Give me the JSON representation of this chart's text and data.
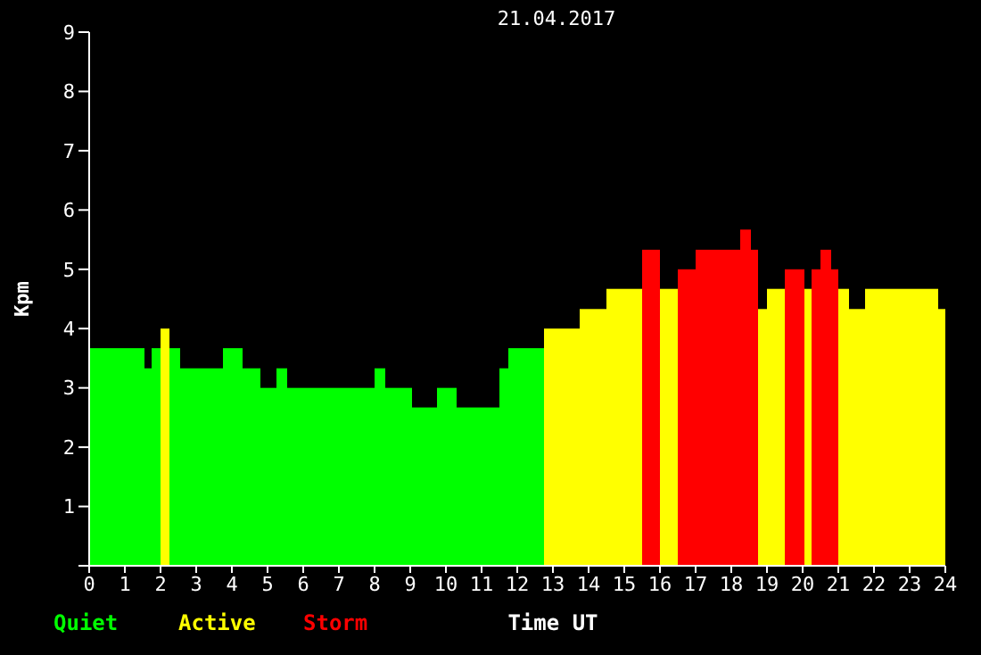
{
  "chart_data": {
    "type": "histogram",
    "title": "21.04.2017",
    "xlabel": "Time UT",
    "ylabel": "Kpm",
    "bins": [
      0,
      1.55,
      1.75,
      2.0,
      2.25,
      2.55,
      3.75,
      4.3,
      4.8,
      5.25,
      5.55,
      8.0,
      8.3,
      9.05,
      9.75,
      10.3,
      11.5,
      11.75,
      12.75,
      13.75,
      14.5,
      15.5,
      16.0,
      16.5,
      17.0,
      18.25,
      18.55,
      18.75,
      19.0,
      19.5,
      20.05,
      20.25,
      20.5,
      20.8,
      21.0,
      21.3,
      21.75,
      23.8,
      24.0
    ],
    "series": [
      {
        "name": "Quiet",
        "color": "#00ff00",
        "values": [
          3.67,
          3.33,
          3.67,
          null,
          3.67,
          3.33,
          3.67,
          3.33,
          3,
          3.33,
          3,
          3.33,
          3,
          2.67,
          3,
          2.67,
          3.33,
          3.67,
          null,
          null,
          null,
          null,
          null,
          null,
          null,
          null,
          null,
          null,
          null,
          null,
          null,
          null,
          null,
          null,
          null,
          null,
          null,
          null
        ]
      },
      {
        "name": "Active",
        "color": "#ffff00",
        "values": [
          null,
          null,
          null,
          4,
          null,
          null,
          null,
          null,
          null,
          null,
          null,
          null,
          null,
          null,
          null,
          null,
          null,
          null,
          4,
          4.33,
          4.67,
          null,
          4.67,
          null,
          null,
          null,
          null,
          4.33,
          4.67,
          null,
          4.67,
          null,
          null,
          null,
          4.67,
          4.33,
          4.67,
          4.33
        ]
      },
      {
        "name": "Storm",
        "color": "#ff0000",
        "values": [
          null,
          null,
          null,
          null,
          null,
          null,
          null,
          null,
          null,
          null,
          null,
          null,
          null,
          null,
          null,
          null,
          null,
          null,
          null,
          null,
          null,
          5.33,
          null,
          5,
          5.33,
          5.67,
          5.33,
          null,
          null,
          5,
          null,
          5,
          5.33,
          5,
          null,
          null,
          null,
          null
        ]
      }
    ],
    "xlim": [
      0,
      24
    ],
    "xticks": [
      0,
      1,
      2,
      3,
      4,
      5,
      6,
      7,
      8,
      9,
      10,
      11,
      12,
      13,
      14,
      15,
      16,
      17,
      18,
      19,
      20,
      21,
      22,
      23,
      24
    ],
    "ylim": [
      0,
      9
    ],
    "yticks": [
      {
        "value": 0,
        "label": null
      },
      1,
      2,
      3,
      4,
      5,
      6,
      7,
      8,
      9
    ],
    "grid": false,
    "legend": "bottom left"
  }
}
